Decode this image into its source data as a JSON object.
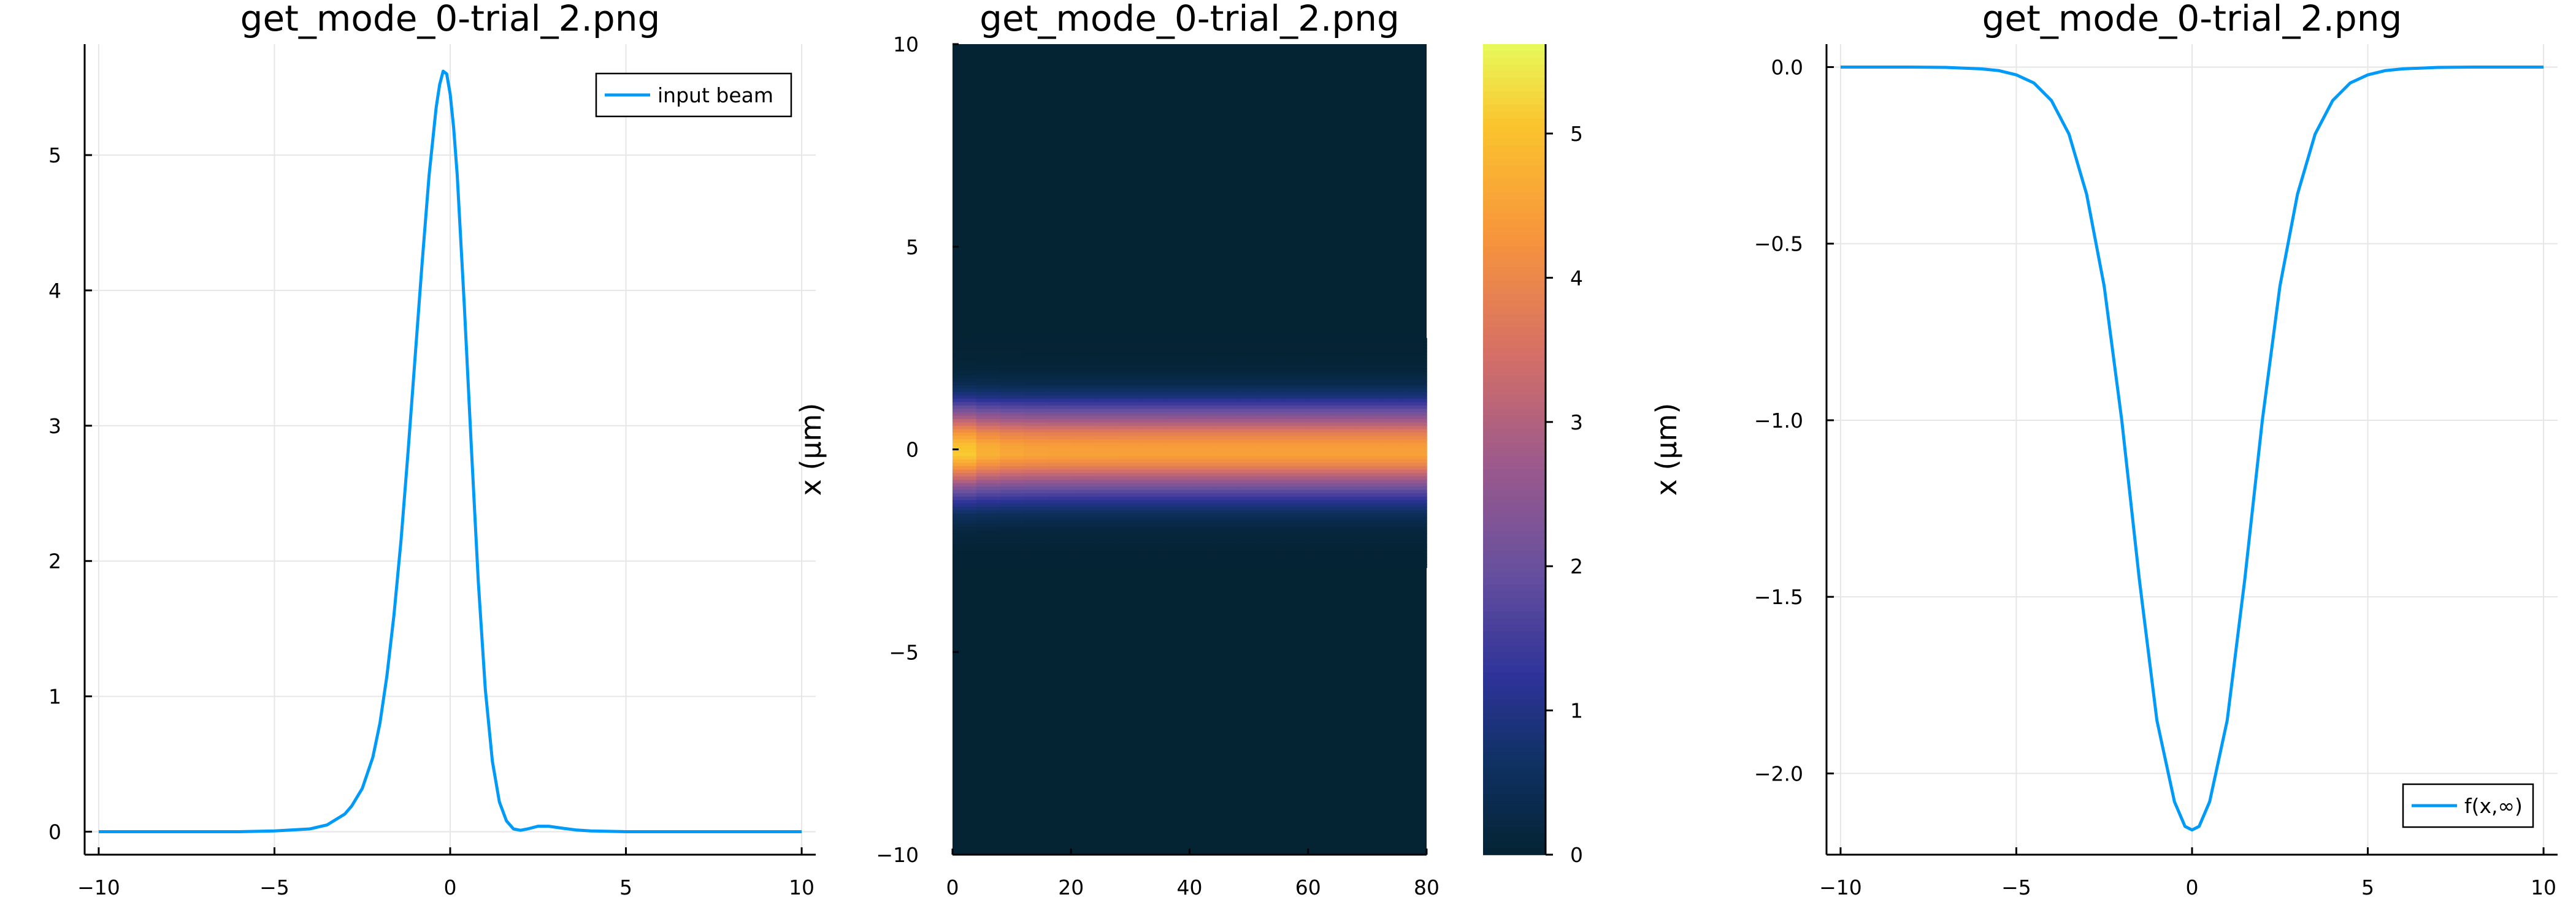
{
  "figure": {
    "colors": {
      "series": "#009af9",
      "grid": "#e6e6e6",
      "axis": "#000000",
      "background": "#ffffff"
    }
  },
  "chart_data": [
    {
      "type": "line",
      "title": "get_mode_0-trial_2.png",
      "xlabel": "",
      "ylabel": "",
      "xlim": [
        -10.4,
        10.4
      ],
      "ylim": [
        -0.17,
        5.82
      ],
      "xticks": [
        -10,
        -5,
        0,
        5,
        10
      ],
      "xtick_labels": [
        "−10",
        "−5",
        "0",
        "5",
        "10"
      ],
      "yticks": [
        0,
        1,
        2,
        3,
        4,
        5
      ],
      "ytick_labels": [
        "0",
        "1",
        "2",
        "3",
        "4",
        "5"
      ],
      "grid": true,
      "legend": "top-right",
      "series": [
        {
          "name": "input beam",
          "color": "#009af9",
          "x": [
            -10,
            -8,
            -6,
            -5,
            -4,
            -3.5,
            -3,
            -2.8,
            -2.5,
            -2.2,
            -2,
            -1.8,
            -1.6,
            -1.4,
            -1.2,
            -1,
            -0.8,
            -0.6,
            -0.4,
            -0.3,
            -0.2,
            -0.1,
            0,
            0.1,
            0.2,
            0.4,
            0.6,
            0.8,
            1,
            1.2,
            1.4,
            1.6,
            1.8,
            2,
            2.2,
            2.5,
            2.8,
            3.2,
            3.6,
            4,
            5,
            6,
            8,
            10
          ],
          "values": [
            0,
            0,
            0,
            0.005,
            0.02,
            0.05,
            0.13,
            0.19,
            0.32,
            0.55,
            0.8,
            1.15,
            1.6,
            2.15,
            2.8,
            3.5,
            4.2,
            4.85,
            5.35,
            5.52,
            5.62,
            5.6,
            5.45,
            5.2,
            4.85,
            3.9,
            2.85,
            1.85,
            1.05,
            0.52,
            0.22,
            0.08,
            0.02,
            0.01,
            0.02,
            0.04,
            0.04,
            0.025,
            0.012,
            0.005,
            0,
            0,
            0,
            0
          ]
        }
      ]
    },
    {
      "type": "heatmap",
      "title": "get_mode_0-trial_2.png",
      "xlabel": "",
      "ylabel": "x (μm)",
      "xlim": [
        0,
        80
      ],
      "ylim": [
        -10,
        10
      ],
      "xticks": [
        0,
        20,
        40,
        60,
        80
      ],
      "xtick_labels": [
        "0",
        "20",
        "40",
        "60",
        "80"
      ],
      "yticks": [
        -10,
        -5,
        0,
        5,
        10
      ],
      "ytick_labels": [
        "−10",
        "−5",
        "0",
        "5",
        "10"
      ],
      "colorbar": {
        "min": 0,
        "max": 5.62,
        "ticks": [
          0,
          1,
          2,
          3,
          4,
          5
        ],
        "tick_labels": [
          "0",
          "1",
          "2",
          "3",
          "4",
          "5"
        ]
      },
      "intensity_profile": {
        "peak_x": -0.15,
        "peak_value": 5.62,
        "profile_x": [
          -10,
          -3,
          -2.5,
          -2,
          -1.6,
          -1.3,
          -1,
          -0.7,
          -0.4,
          -0.15,
          0.1,
          0.4,
          0.7,
          1,
          1.3,
          1.6,
          2,
          2.5,
          3,
          10
        ],
        "profile_values": [
          0,
          0,
          0.02,
          0.15,
          0.5,
          1.1,
          1.9,
          2.9,
          3.9,
          4.5,
          4.4,
          3.8,
          2.8,
          1.8,
          0.9,
          0.35,
          0.08,
          0.01,
          0,
          0
        ],
        "input_peak_value": 5.62
      }
    },
    {
      "type": "line",
      "title": "get_mode_0-trial_2.png",
      "xlabel": "",
      "ylabel": "x (μm)",
      "xlim": [
        -10.4,
        10.4
      ],
      "ylim": [
        -2.23,
        0.065
      ],
      "xticks": [
        -10,
        -5,
        0,
        5,
        10
      ],
      "xtick_labels": [
        "−10",
        "−5",
        "0",
        "5",
        "10"
      ],
      "yticks": [
        0,
        -0.5,
        -1,
        -1.5,
        -2
      ],
      "ytick_labels": [
        "0.0",
        "−0.5",
        "−1.0",
        "−1.5",
        "−2.0"
      ],
      "grid": true,
      "legend": "bottom-right",
      "series": [
        {
          "name": "f(x,∞)",
          "color": "#009af9",
          "x": [
            -10,
            -8,
            -7,
            -6,
            -5.5,
            -5,
            -4.5,
            -4,
            -3.5,
            -3,
            -2.5,
            -2,
            -1.5,
            -1,
            -0.5,
            -0.2,
            0,
            0.2,
            0.5,
            1,
            1.5,
            2,
            2.5,
            3,
            3.5,
            4,
            4.5,
            5,
            5.5,
            6,
            7,
            8,
            10
          ],
          "values": [
            0,
            0,
            -0.001,
            -0.005,
            -0.01,
            -0.022,
            -0.045,
            -0.095,
            -0.19,
            -0.36,
            -0.62,
            -1.0,
            -1.45,
            -1.85,
            -2.08,
            -2.15,
            -2.16,
            -2.15,
            -2.08,
            -1.85,
            -1.45,
            -1.0,
            -0.62,
            -0.36,
            -0.19,
            -0.095,
            -0.045,
            -0.022,
            -0.01,
            -0.005,
            -0.001,
            0,
            0
          ]
        }
      ]
    }
  ]
}
